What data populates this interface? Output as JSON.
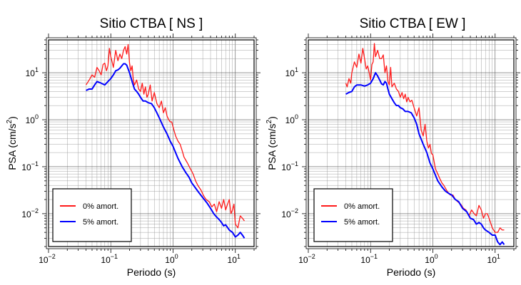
{
  "chart_data": [
    {
      "type": "line",
      "title": "Sitio CTBA [ NS ]",
      "xlabel": "Periodo (s)",
      "ylabel": "PSA (cm/s²)",
      "ylabel_parts": {
        "main": "PSA (cm/s",
        "sup": "2",
        "end": ")"
      },
      "xscale": "log",
      "yscale": "log",
      "xlim": [
        0.01,
        20
      ],
      "ylim": [
        0.002,
        50
      ],
      "grid": true,
      "legend_position": "bottom-left",
      "x_ticks": [
        {
          "value": 0.01,
          "base": "10",
          "exp": "−2"
        },
        {
          "value": 0.1,
          "base": "10",
          "exp": "−1"
        },
        {
          "value": 1,
          "base": "10",
          "exp": "0"
        },
        {
          "value": 10,
          "base": "10",
          "exp": "1"
        }
      ],
      "y_ticks": [
        {
          "value": 0.01,
          "base": "10",
          "exp": "−2"
        },
        {
          "value": 0.1,
          "base": "10",
          "exp": "−1"
        },
        {
          "value": 1,
          "base": "10",
          "exp": "0"
        },
        {
          "value": 10,
          "base": "10",
          "exp": "1"
        }
      ],
      "series": [
        {
          "name": "0% amort.",
          "color": "#ff1a1a",
          "x": [
            0.04,
            0.045,
            0.05,
            0.055,
            0.06,
            0.065,
            0.07,
            0.075,
            0.08,
            0.085,
            0.09,
            0.095,
            0.1,
            0.105,
            0.11,
            0.12,
            0.13,
            0.14,
            0.15,
            0.16,
            0.17,
            0.18,
            0.19,
            0.2,
            0.21,
            0.22,
            0.23,
            0.24,
            0.26,
            0.28,
            0.3,
            0.32,
            0.34,
            0.36,
            0.38,
            0.4,
            0.43,
            0.46,
            0.5,
            0.55,
            0.6,
            0.65,
            0.7,
            0.75,
            0.8,
            0.85,
            0.9,
            0.95,
            1.0,
            1.1,
            1.2,
            1.3,
            1.4,
            1.5,
            1.7,
            1.9,
            2.1,
            2.3,
            2.5,
            2.8,
            3.1,
            3.4,
            3.8,
            4.2,
            4.6,
            5.0,
            5.5,
            6.0,
            6.5,
            7.0,
            7.5,
            8.0,
            8.5,
            9.0,
            9.5,
            10,
            11,
            12,
            13,
            14
          ],
          "values": [
            5.5,
            7.0,
            9.0,
            8.0,
            13.0,
            11.0,
            9.0,
            15.0,
            16.0,
            11.0,
            14.0,
            33.0,
            22.0,
            17.0,
            13.0,
            30.0,
            18.0,
            25.0,
            20.0,
            30.0,
            36.0,
            25.0,
            40.0,
            16.0,
            11.0,
            14.0,
            7.0,
            5.5,
            7.0,
            4.5,
            4.0,
            6.0,
            3.5,
            5.0,
            3.0,
            3.5,
            5.5,
            2.5,
            3.8,
            2.2,
            1.8,
            2.5,
            1.4,
            1.8,
            1.2,
            1.0,
            0.9,
            0.9,
            0.7,
            0.45,
            0.35,
            0.3,
            0.22,
            0.16,
            0.12,
            0.09,
            0.07,
            0.05,
            0.04,
            0.032,
            0.024,
            0.02,
            0.018,
            0.014,
            0.016,
            0.011,
            0.018,
            0.013,
            0.02,
            0.012,
            0.016,
            0.02,
            0.01,
            0.012,
            0.016,
            0.006,
            0.005,
            0.009,
            0.008,
            0.007
          ]
        },
        {
          "name": "5% amort.",
          "color": "#0000ff",
          "x": [
            0.04,
            0.045,
            0.05,
            0.055,
            0.06,
            0.07,
            0.08,
            0.09,
            0.1,
            0.11,
            0.12,
            0.13,
            0.14,
            0.15,
            0.16,
            0.17,
            0.18,
            0.19,
            0.2,
            0.22,
            0.24,
            0.26,
            0.28,
            0.3,
            0.33,
            0.36,
            0.4,
            0.45,
            0.5,
            0.55,
            0.6,
            0.7,
            0.8,
            0.9,
            1.0,
            1.2,
            1.4,
            1.6,
            1.8,
            2.0,
            2.3,
            2.6,
            3.0,
            3.5,
            4.0,
            4.5,
            5.0,
            5.5,
            6.0,
            6.5,
            7.0,
            8.0,
            9.0,
            10,
            11,
            12,
            13,
            14
          ],
          "values": [
            4.2,
            4.5,
            4.5,
            5.5,
            6.5,
            6.0,
            5.5,
            6.5,
            7.5,
            9.0,
            11.0,
            11.5,
            12.5,
            14.0,
            15.5,
            15.5,
            14.5,
            12.0,
            10.0,
            6.5,
            4.5,
            4.0,
            3.5,
            3.0,
            2.5,
            2.5,
            2.3,
            2.2,
            1.8,
            1.4,
            1.1,
            0.7,
            0.5,
            0.35,
            0.27,
            0.15,
            0.1,
            0.075,
            0.06,
            0.045,
            0.035,
            0.028,
            0.022,
            0.017,
            0.013,
            0.01,
            0.0085,
            0.0075,
            0.0065,
            0.0055,
            0.0058,
            0.0045,
            0.004,
            0.0032,
            0.0035,
            0.004,
            0.0035,
            0.003
          ]
        }
      ]
    },
    {
      "type": "line",
      "title": "Sitio CTBA [ EW ]",
      "xlabel": "Periodo (s)",
      "ylabel": "PSA (cm/s²)",
      "ylabel_parts": {
        "main": "PSA (cm/s",
        "sup": "2",
        "end": ")"
      },
      "xscale": "log",
      "yscale": "log",
      "xlim": [
        0.01,
        20
      ],
      "ylim": [
        0.002,
        50
      ],
      "grid": true,
      "legend_position": "bottom-left",
      "x_ticks": [
        {
          "value": 0.01,
          "base": "10",
          "exp": "−2"
        },
        {
          "value": 0.1,
          "base": "10",
          "exp": "−1"
        },
        {
          "value": 1,
          "base": "10",
          "exp": "0"
        },
        {
          "value": 10,
          "base": "10",
          "exp": "1"
        }
      ],
      "y_ticks": [
        {
          "value": 0.01,
          "base": "10",
          "exp": "−2"
        },
        {
          "value": 0.1,
          "base": "10",
          "exp": "−1"
        },
        {
          "value": 1,
          "base": "10",
          "exp": "0"
        },
        {
          "value": 10,
          "base": "10",
          "exp": "1"
        }
      ],
      "series": [
        {
          "name": "0% amort.",
          "color": "#ff1a1a",
          "x": [
            0.04,
            0.042,
            0.045,
            0.048,
            0.05,
            0.055,
            0.06,
            0.065,
            0.07,
            0.075,
            0.08,
            0.085,
            0.09,
            0.095,
            0.1,
            0.105,
            0.11,
            0.115,
            0.12,
            0.13,
            0.14,
            0.15,
            0.16,
            0.17,
            0.18,
            0.19,
            0.2,
            0.21,
            0.22,
            0.24,
            0.26,
            0.28,
            0.3,
            0.32,
            0.34,
            0.36,
            0.38,
            0.4,
            0.43,
            0.46,
            0.5,
            0.55,
            0.6,
            0.65,
            0.7,
            0.75,
            0.8,
            0.85,
            0.9,
            0.95,
            1.0,
            1.1,
            1.2,
            1.3,
            1.4,
            1.5,
            1.7,
            1.9,
            2.1,
            2.3,
            2.5,
            2.8,
            3.1,
            3.4,
            3.8,
            4.2,
            4.6,
            5.0,
            5.5,
            6.0,
            6.5,
            7.0,
            7.5,
            8.0,
            9.0,
            10,
            11,
            12,
            13,
            14
          ],
          "values": [
            6.0,
            5.0,
            7.5,
            6.0,
            10.0,
            17.0,
            13.0,
            25.0,
            16.0,
            33.0,
            20.0,
            12.0,
            14.0,
            10.0,
            7.0,
            15.0,
            17.0,
            42.0,
            22.0,
            30.0,
            20.0,
            20.0,
            24.0,
            10.0,
            14.0,
            6.5,
            5.5,
            13.0,
            5.0,
            6.0,
            4.5,
            4.0,
            3.0,
            3.8,
            2.8,
            3.5,
            2.4,
            3.0,
            2.4,
            2.6,
            1.8,
            1.2,
            1.8,
            0.6,
            0.45,
            0.8,
            0.35,
            0.25,
            0.3,
            0.19,
            0.18,
            0.09,
            0.07,
            0.055,
            0.045,
            0.04,
            0.03,
            0.025,
            0.025,
            0.02,
            0.018,
            0.016,
            0.013,
            0.012,
            0.009,
            0.012,
            0.01,
            0.009,
            0.015,
            0.012,
            0.008,
            0.01,
            0.01,
            0.008,
            0.005,
            0.004,
            0.004,
            0.005,
            0.0045,
            0.0045
          ]
        },
        {
          "name": "5% amort.",
          "color": "#0000ff",
          "x": [
            0.04,
            0.045,
            0.05,
            0.055,
            0.06,
            0.07,
            0.08,
            0.09,
            0.1,
            0.11,
            0.12,
            0.13,
            0.14,
            0.15,
            0.16,
            0.17,
            0.18,
            0.19,
            0.2,
            0.22,
            0.24,
            0.26,
            0.28,
            0.3,
            0.33,
            0.36,
            0.4,
            0.45,
            0.5,
            0.55,
            0.6,
            0.7,
            0.8,
            0.9,
            1.0,
            1.2,
            1.4,
            1.6,
            1.8,
            2.0,
            2.3,
            2.6,
            3.0,
            3.5,
            4.0,
            4.5,
            5.0,
            5.5,
            6.0,
            6.5,
            7.0,
            8.0,
            9.0,
            10,
            11,
            12,
            13,
            14
          ],
          "values": [
            3.5,
            3.8,
            4.0,
            5.0,
            5.5,
            5.5,
            5.2,
            5.5,
            6.0,
            7.5,
            10.0,
            8.5,
            7.0,
            5.8,
            5.5,
            6.5,
            6.0,
            4.5,
            3.5,
            2.8,
            2.3,
            2.0,
            2.0,
            1.8,
            1.7,
            1.5,
            1.5,
            1.4,
            1.1,
            0.8,
            0.5,
            0.3,
            0.2,
            0.12,
            0.09,
            0.05,
            0.037,
            0.03,
            0.027,
            0.025,
            0.02,
            0.018,
            0.013,
            0.011,
            0.008,
            0.0075,
            0.006,
            0.0065,
            0.006,
            0.005,
            0.0045,
            0.004,
            0.0035,
            0.0035,
            0.0025,
            0.0022,
            0.0025,
            0.0022
          ]
        }
      ]
    }
  ]
}
